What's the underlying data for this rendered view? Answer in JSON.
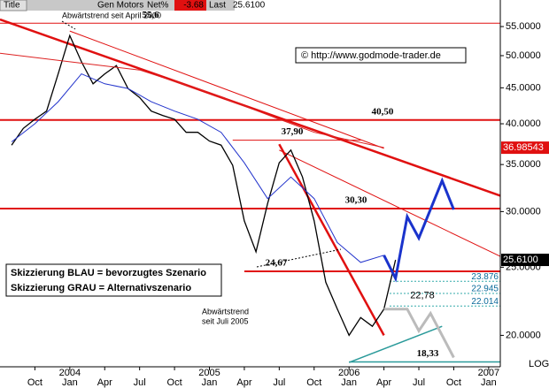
{
  "header": {
    "title_label": "Title",
    "symbol": "Gen Motors",
    "net_label": "Net%",
    "net_value": "-3.68",
    "last_label": "Last",
    "last_value": "25.6100"
  },
  "chart_data": {
    "type": "line",
    "log_scale": true,
    "xlim": [
      "2003-07",
      "2007-02"
    ],
    "ylim": [
      18.2,
      60
    ],
    "yticks": [
      {
        "value": 20,
        "label": "20.0000"
      },
      {
        "value": 25,
        "label": "25.0000"
      },
      {
        "value": 30,
        "label": "30.0000"
      },
      {
        "value": 35,
        "label": "35.0000"
      },
      {
        "value": 40,
        "label": "40.0000"
      },
      {
        "value": 45,
        "label": "45.0000"
      },
      {
        "value": 50,
        "label": "50.0000"
      },
      {
        "value": 55,
        "label": "55.0000"
      }
    ],
    "xticks": [
      {
        "value": "2003-10",
        "label": "Oct"
      },
      {
        "value": "2004-01",
        "label": "Jan"
      },
      {
        "value": "2004-04",
        "label": "Apr"
      },
      {
        "value": "2004-07",
        "label": "Jul"
      },
      {
        "value": "2004-10",
        "label": "Oct"
      },
      {
        "value": "2005-01",
        "label": "Jan"
      },
      {
        "value": "2005-04",
        "label": "Apr"
      },
      {
        "value": "2005-07",
        "label": "Jul"
      },
      {
        "value": "2005-10",
        "label": "Oct"
      },
      {
        "value": "2006-01",
        "label": "Jan"
      },
      {
        "value": "2006-04",
        "label": "Apr"
      },
      {
        "value": "2006-07",
        "label": "Jul"
      },
      {
        "value": "2006-10",
        "label": "Oct"
      },
      {
        "value": "2007-01",
        "label": "Jan"
      }
    ],
    "year_labels": [
      {
        "value": "2004-01",
        "label": "2004"
      },
      {
        "value": "2005-01",
        "label": "2005"
      },
      {
        "value": "2006-01",
        "label": "2006"
      },
      {
        "value": "2007-01",
        "label": "2007"
      }
    ],
    "scale_label": "LOG",
    "series": [
      {
        "color": "#000000",
        "width": 1.3,
        "x": [
          "2003-08",
          "2003-09",
          "2003-10",
          "2003-11",
          "2003-12",
          "2004-01",
          "2004-02",
          "2004-03",
          "2004-04",
          "2004-05",
          "2004-06",
          "2004-07",
          "2004-08",
          "2004-09",
          "2004-10",
          "2004-11",
          "2004-12",
          "2005-01",
          "2005-02",
          "2005-03",
          "2005-04",
          "2005-05",
          "2005-06",
          "2005-07",
          "2005-08",
          "2005-09",
          "2005-10",
          "2005-11",
          "2005-12",
          "2006-01",
          "2006-02",
          "2006-03",
          "2006-04",
          "2006-05"
        ],
        "values": [
          37.3,
          39.4,
          40.6,
          41.7,
          47.1,
          53.4,
          49.0,
          45.6,
          47.1,
          48.4,
          44.9,
          43.6,
          41.7,
          41.1,
          40.6,
          38.9,
          38.9,
          37.8,
          37.3,
          34.9,
          29.1,
          26.3,
          30.8,
          35.2,
          36.7,
          33.6,
          29.1,
          23.8,
          21.8,
          20.0,
          21.2,
          20.6,
          21.8,
          25.61
        ]
      },
      {
        "color": "#2233cc",
        "width": 1,
        "x": [
          "2003-08",
          "2003-10",
          "2003-12",
          "2004-02",
          "2004-04",
          "2004-06",
          "2004-08",
          "2004-10",
          "2004-12",
          "2005-02",
          "2005-04",
          "2005-06",
          "2005-08",
          "2005-10",
          "2005-12",
          "2006-02",
          "2006-04"
        ],
        "values": [
          37.7,
          40.0,
          43.0,
          47.1,
          45.6,
          44.9,
          43.0,
          41.7,
          40.6,
          38.9,
          35.2,
          31.3,
          33.6,
          31.3,
          27.1,
          25.4,
          26.0
        ]
      },
      {
        "color": "#dd2222",
        "width": 1,
        "x": [
          "2003-07",
          "2004-01",
          "2004-07",
          "2005-01",
          "2005-07",
          "2005-10",
          "2006-04"
        ],
        "values": [
          50.4,
          49.0,
          47.7,
          44.3,
          40.6,
          38.9,
          37.0
        ]
      }
    ],
    "trendlines": [
      {
        "x": [
          "2003-07",
          "2007-02"
        ],
        "values": [
          56.3,
          31.6
        ],
        "color": "#e01010",
        "width": 2.5
      },
      {
        "x": [
          "2005-07",
          "2006-04"
        ],
        "values": [
          37.4,
          20.0
        ],
        "color": "#e01010",
        "width": 2.5
      },
      {
        "x": [
          "2005-07",
          "2007-02"
        ],
        "values": [
          36.7,
          25.9
        ],
        "color": "#e01010",
        "width": 1
      },
      {
        "x": [
          "2004-01",
          "2006-04"
        ],
        "values": [
          54.2,
          36.9
        ],
        "color": "#e01010",
        "width": 1
      },
      {
        "x": [
          "2006-01",
          "2006-09"
        ],
        "values": [
          18.3,
          20.6
        ],
        "color": "#2a9a9a",
        "width": 1.5
      }
    ],
    "levels": [
      {
        "value": 55.6,
        "label": "55,6",
        "x": [
          "2003-07",
          "2007-02"
        ],
        "color": "#e01010",
        "width": 1
      },
      {
        "value": 40.5,
        "label": "40,50",
        "x": [
          "2003-07",
          "2007-02"
        ],
        "color": "#e01010",
        "width": 2
      },
      {
        "value": 30.3,
        "label": "30,30",
        "x": [
          "2003-07",
          "2007-02"
        ],
        "color": "#e01010",
        "width": 2
      },
      {
        "value": 24.67,
        "label": "24,67",
        "x": [
          "2005-04",
          "2007-02"
        ],
        "color": "#e01010",
        "width": 2
      },
      {
        "value": 37.9,
        "label": "37,90",
        "x": [
          "2005-03",
          "2006-02"
        ],
        "color": "#e01010",
        "width": 1
      },
      {
        "value": 18.33,
        "label": "18,33",
        "x": [
          "2006-01",
          "2007-02"
        ],
        "color": "#2a9a9a",
        "width": 1.5
      }
    ],
    "value_annotations": [
      {
        "value": 22.78,
        "label": "22,78"
      }
    ],
    "fib_levels": [
      23.876,
      22.945,
      22.014
    ],
    "scenarios": [
      {
        "x": [
          "2006-04",
          "2006-05",
          "2006-06",
          "2006-07",
          "2006-09",
          "2006-10"
        ],
        "values": [
          26.0,
          24.1,
          29.5,
          27.5,
          33.2,
          30.2
        ],
        "color": "#1a33cc"
      },
      {
        "x": [
          "2006-04",
          "2006-06",
          "2006-07",
          "2006-08",
          "2006-10"
        ],
        "values": [
          21.8,
          21.8,
          20.3,
          21.5,
          18.6
        ],
        "color": "#bbbbbb"
      }
    ],
    "price_tags": [
      {
        "value": 36.98543,
        "label": "36.98543",
        "color": "#e01010"
      },
      {
        "value": 25.61,
        "label": "25.6100",
        "color": "#000000"
      }
    ],
    "annotations": {
      "trend_2000": "Abwärtstrend seit April 2000",
      "trend_2005_line1": "Abwärtstrend",
      "trend_2005_line2": "seit Juli 2005",
      "copyright": "© http://www.godmode-trader.de",
      "legend_blue": "Skizzierung BLAU = bevorzugtes Szenario",
      "legend_grey": "Skizzierung GRAU = Alternativszenario"
    }
  }
}
